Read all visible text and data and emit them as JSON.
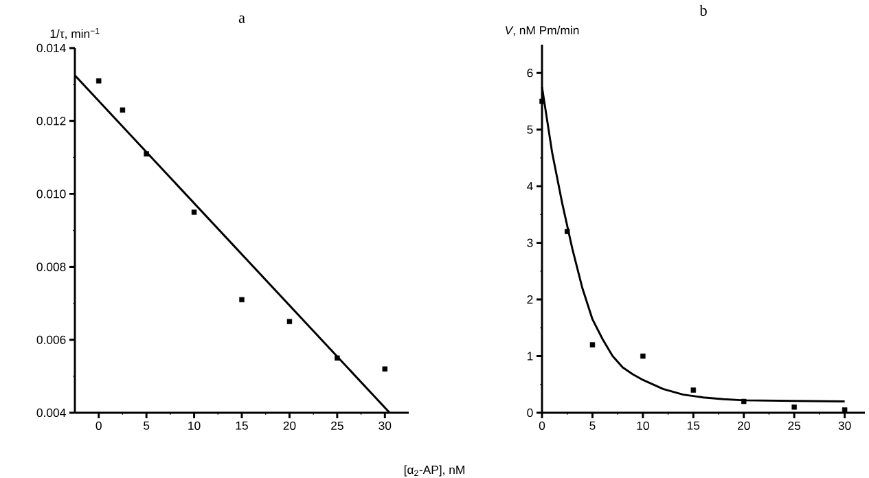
{
  "chart_data": [
    {
      "type": "scatter",
      "title": "a",
      "xlabel": "[α$_{2}$-AP], nM",
      "ylabel": "1/τ, min$^{−1}$",
      "xlim": [
        -2.5,
        32.5
      ],
      "xticks": [
        0,
        5,
        10,
        15,
        20,
        25,
        30
      ],
      "ylim": [
        0.004,
        0.014
      ],
      "yticks": [
        0.004,
        0.006,
        0.008,
        {
          "value": 0.01,
          "label": "0.010"
        },
        0.012,
        0.014
      ],
      "series": [
        {
          "marker": "square",
          "color": "#000000",
          "x": [
            0,
            2.5,
            5,
            10,
            15,
            20,
            25,
            30
          ],
          "values": [
            0.0131,
            0.0123,
            0.0111,
            0.0095,
            0.0071,
            0.0065,
            0.0055,
            0.0052
          ]
        },
        {
          "type": "line",
          "marker": "none",
          "line_style": "solid",
          "color": "#000000",
          "x": [
            -2.5,
            30.5
          ],
          "values": [
            0.01325,
            0.004
          ]
        }
      ]
    },
    {
      "type": "scatter",
      "title": "b",
      "ylabel": "*V*, nM Pm/min",
      "xlim": [
        0,
        32
      ],
      "xticks": [
        0,
        5,
        10,
        15,
        20,
        25,
        30
      ],
      "ylim": [
        0,
        6.5
      ],
      "yticks": [
        0,
        1,
        2,
        3,
        4,
        5,
        6
      ],
      "series": [
        {
          "marker": "square",
          "color": "#000000",
          "x": [
            0,
            2.5,
            5,
            10,
            15,
            20,
            25,
            30
          ],
          "values": [
            5.5,
            3.2,
            1.2,
            1.0,
            0.4,
            0.2,
            0.1,
            0.05
          ]
        },
        {
          "type": "line",
          "marker": "none",
          "line_style": "solid",
          "color": "#000000",
          "x": [
            0,
            1,
            2,
            3,
            4,
            5,
            6,
            7,
            8,
            9,
            10,
            12,
            14,
            16,
            18,
            20,
            25,
            30
          ],
          "values": [
            5.75,
            4.6,
            3.7,
            2.9,
            2.2,
            1.65,
            1.3,
            1.0,
            0.8,
            0.68,
            0.58,
            0.42,
            0.32,
            0.27,
            0.24,
            0.22,
            0.21,
            0.2
          ]
        }
      ]
    }
  ]
}
